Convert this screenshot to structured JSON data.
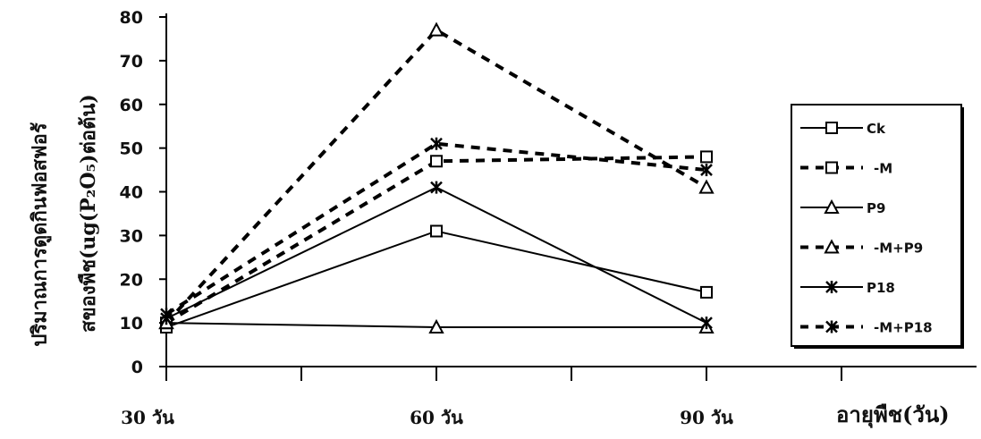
{
  "chart_data": {
    "type": "line",
    "categories": [
      "30 วัน",
      "60 วัน",
      "90 วัน"
    ],
    "ylim": [
      0,
      80
    ],
    "yticks": [
      0,
      10,
      20,
      30,
      40,
      50,
      60,
      70,
      80
    ],
    "ylabel_line1": "ปริมาณการดูดกินฟอสฟอรั",
    "ylabel_line2": "สของพืช(ug(P₂O₅)ต่อต้น)",
    "xlabel": "อายุพืช(วัน)",
    "legend_position": "right",
    "grid": false,
    "series": [
      {
        "name": "Ck",
        "values": [
          9,
          31,
          17
        ],
        "marker": "square",
        "dashed": false
      },
      {
        "name": "M",
        "values": [
          10,
          47,
          48
        ],
        "marker": "square",
        "dashed": true
      },
      {
        "name": "P9",
        "values": [
          10,
          9,
          9
        ],
        "marker": "triangle",
        "dashed": false
      },
      {
        "name": "M+P9",
        "values": [
          10,
          77,
          41
        ],
        "marker": "triangle",
        "dashed": true
      },
      {
        "name": "P18",
        "values": [
          11,
          41,
          10
        ],
        "marker": "star",
        "dashed": false
      },
      {
        "name": "M+P18",
        "values": [
          12,
          51,
          45
        ],
        "marker": "star",
        "dashed": true
      }
    ]
  }
}
